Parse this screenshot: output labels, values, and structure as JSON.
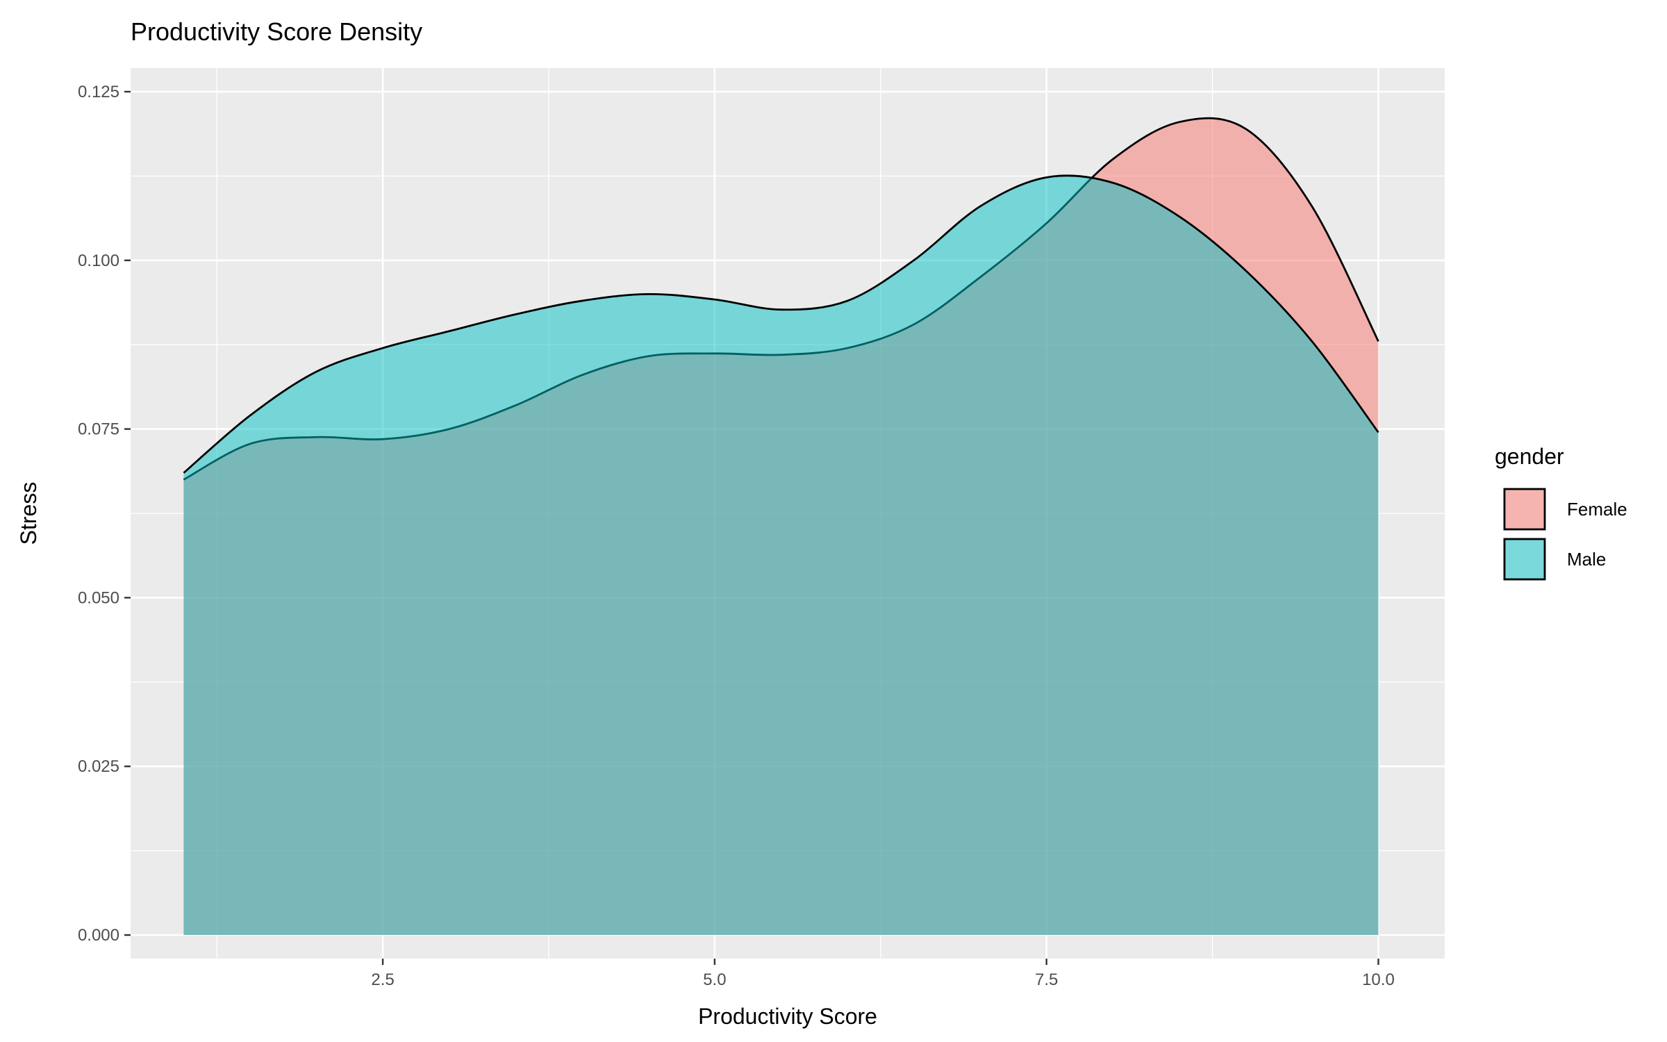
{
  "chart_data": {
    "type": "area",
    "title": "Productivity Score Density",
    "xlabel": "Productivity Score",
    "ylabel": "Stress",
    "xlim": [
      0.6,
      10.5
    ],
    "ylim": [
      -0.0035,
      0.1285
    ],
    "x_ticks": [
      2.5,
      5.0,
      7.5,
      10.0
    ],
    "x_tick_labels": [
      "2.5",
      "5.0",
      "7.5",
      "10.0"
    ],
    "y_ticks": [
      0.0,
      0.025,
      0.05,
      0.075,
      0.1,
      0.125
    ],
    "y_tick_labels": [
      "0.000",
      "0.025",
      "0.050",
      "0.075",
      "0.100",
      "0.125"
    ],
    "grid": true,
    "legend": {
      "title": "gender",
      "position": "right",
      "entries": [
        {
          "label": "Female",
          "color": "#F8766D"
        },
        {
          "label": "Male",
          "color": "#00BFC4"
        }
      ]
    },
    "x": [
      1.0,
      1.5,
      2.0,
      2.5,
      3.0,
      3.5,
      4.0,
      4.5,
      5.0,
      5.5,
      6.0,
      6.5,
      7.0,
      7.5,
      8.0,
      8.5,
      9.0,
      9.5,
      10.0
    ],
    "series": [
      {
        "name": "Female",
        "color": "#F8766D",
        "values": [
          0.0675,
          0.0728,
          0.0738,
          0.0735,
          0.075,
          0.0785,
          0.083,
          0.0858,
          0.0862,
          0.086,
          0.087,
          0.0905,
          0.0975,
          0.1055,
          0.115,
          0.1205,
          0.1195,
          0.108,
          0.088
        ]
      },
      {
        "name": "Male",
        "color": "#00BFC4",
        "values": [
          0.0685,
          0.077,
          0.0835,
          0.087,
          0.0895,
          0.092,
          0.094,
          0.095,
          0.0942,
          0.0927,
          0.094,
          0.1,
          0.108,
          0.1123,
          0.1115,
          0.1065,
          0.0985,
          0.088,
          0.0745
        ]
      }
    ]
  }
}
